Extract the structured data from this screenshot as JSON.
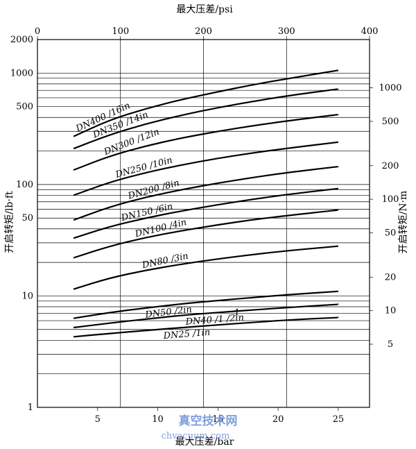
{
  "chart_data": {
    "type": "line",
    "top_axis": {
      "label": "最大压差/psi",
      "ticks": [
        "0",
        "100",
        "200",
        "300",
        "400"
      ],
      "lim": [
        0,
        400
      ]
    },
    "bottom_axis": {
      "label": "最大压差/bar",
      "ticks": [
        "5",
        "10",
        "15",
        "20",
        "25"
      ],
      "lim": [
        0,
        27.6
      ]
    },
    "left_axis": {
      "label": "开启转矩/lb·ft",
      "scale": "log",
      "ticks": [
        "1",
        "10",
        "50",
        "100",
        "500",
        "1000",
        "2000"
      ],
      "tick_values": [
        1,
        10,
        50,
        100,
        500,
        1000,
        2000
      ],
      "lim": [
        1,
        2000
      ]
    },
    "right_axis": {
      "label": "开启转矩/N·m",
      "scale": "log",
      "ticks": [
        "5",
        "10",
        "20",
        "50",
        "100",
        "200",
        "500",
        "1000"
      ],
      "tick_values": [
        5,
        10,
        20,
        50,
        100,
        200,
        500,
        1000
      ],
      "lim": [
        1.356,
        2712
      ]
    },
    "grid": true,
    "series": [
      {
        "name": "DN400 /16in",
        "x": [
          3,
          6,
          9,
          12,
          15,
          18,
          21,
          25
        ],
        "y": [
          270,
          380,
          480,
          580,
          680,
          790,
          900,
          1060
        ]
      },
      {
        "name": "DN350 /14in",
        "x": [
          3,
          6,
          9,
          12,
          15,
          18,
          21,
          25
        ],
        "y": [
          210,
          280,
          350,
          420,
          490,
          560,
          630,
          720
        ]
      },
      {
        "name": "DN300 /12in",
        "x": [
          3,
          6,
          9,
          12,
          15,
          18,
          21,
          25
        ],
        "y": [
          135,
          180,
          222,
          262,
          300,
          338,
          375,
          425
        ]
      },
      {
        "name": "DN250 /10in",
        "x": [
          3,
          6,
          9,
          12,
          15,
          18,
          21,
          25
        ],
        "y": [
          80,
          105,
          128,
          150,
          172,
          193,
          213,
          240
        ]
      },
      {
        "name": "DN200 /8in",
        "x": [
          3,
          6,
          9,
          12,
          15,
          18,
          21,
          25
        ],
        "y": [
          48,
          63,
          77,
          90,
          103,
          116,
          129,
          145
        ]
      },
      {
        "name": "DN150 /6in",
        "x": [
          3,
          6,
          9,
          12,
          15,
          18,
          21,
          25
        ],
        "y": [
          33,
          42,
          50,
          58,
          66,
          74,
          82,
          92
        ]
      },
      {
        "name": "DN100 /4in",
        "x": [
          3,
          6,
          9,
          12,
          15,
          18,
          21,
          25
        ],
        "y": [
          22,
          28,
          33.5,
          38.5,
          43.5,
          48.5,
          53,
          59
        ]
      },
      {
        "name": "DN80 /3in",
        "x": [
          3,
          6,
          9,
          12,
          15,
          18,
          21,
          25
        ],
        "y": [
          11.5,
          14.5,
          17,
          19.3,
          21.5,
          23.6,
          25.6,
          28
        ]
      },
      {
        "name": "DN50 /2in",
        "x": [
          3,
          6,
          9,
          12,
          15,
          18,
          21,
          25
        ],
        "y": [
          6.3,
          7.1,
          7.8,
          8.5,
          9.1,
          9.7,
          10.3,
          11
        ]
      },
      {
        "name": "DN40 /1-1/2in",
        "x": [
          3,
          6,
          9,
          12,
          15,
          18,
          21,
          25
        ],
        "y": [
          5.2,
          5.7,
          6.2,
          6.7,
          7.1,
          7.5,
          7.9,
          8.4
        ]
      },
      {
        "name": "DN25 /1in",
        "x": [
          3,
          6,
          9,
          12,
          15,
          18,
          21,
          25
        ],
        "y": [
          4.3,
          4.6,
          4.9,
          5.2,
          5.5,
          5.8,
          6.1,
          6.4
        ]
      }
    ],
    "curve_labels": [
      {
        "text": "DN400 /16in",
        "series": 0
      },
      {
        "text": "DN350 /14in",
        "series": 1
      },
      {
        "text": "DN300 /12in",
        "series": 2
      },
      {
        "text": "DN250 /10in",
        "series": 3
      },
      {
        "text": "DN200 /8in",
        "series": 4
      },
      {
        "text": "DN150 /6in",
        "series": 5
      },
      {
        "text": "DN100 /4in",
        "series": 6
      },
      {
        "text": "DN80 /3in",
        "series": 7
      },
      {
        "text": "DN50 /2in",
        "series": 8
      },
      {
        "text": "1",
        "series": 9
      },
      {
        "text": "DN40 /1 /2in",
        "series": 9
      },
      {
        "text": "DN25 /1in",
        "series": 10
      }
    ]
  },
  "watermark": {
    "line1": "真空技术网",
    "line2": "chvacuum.com"
  }
}
